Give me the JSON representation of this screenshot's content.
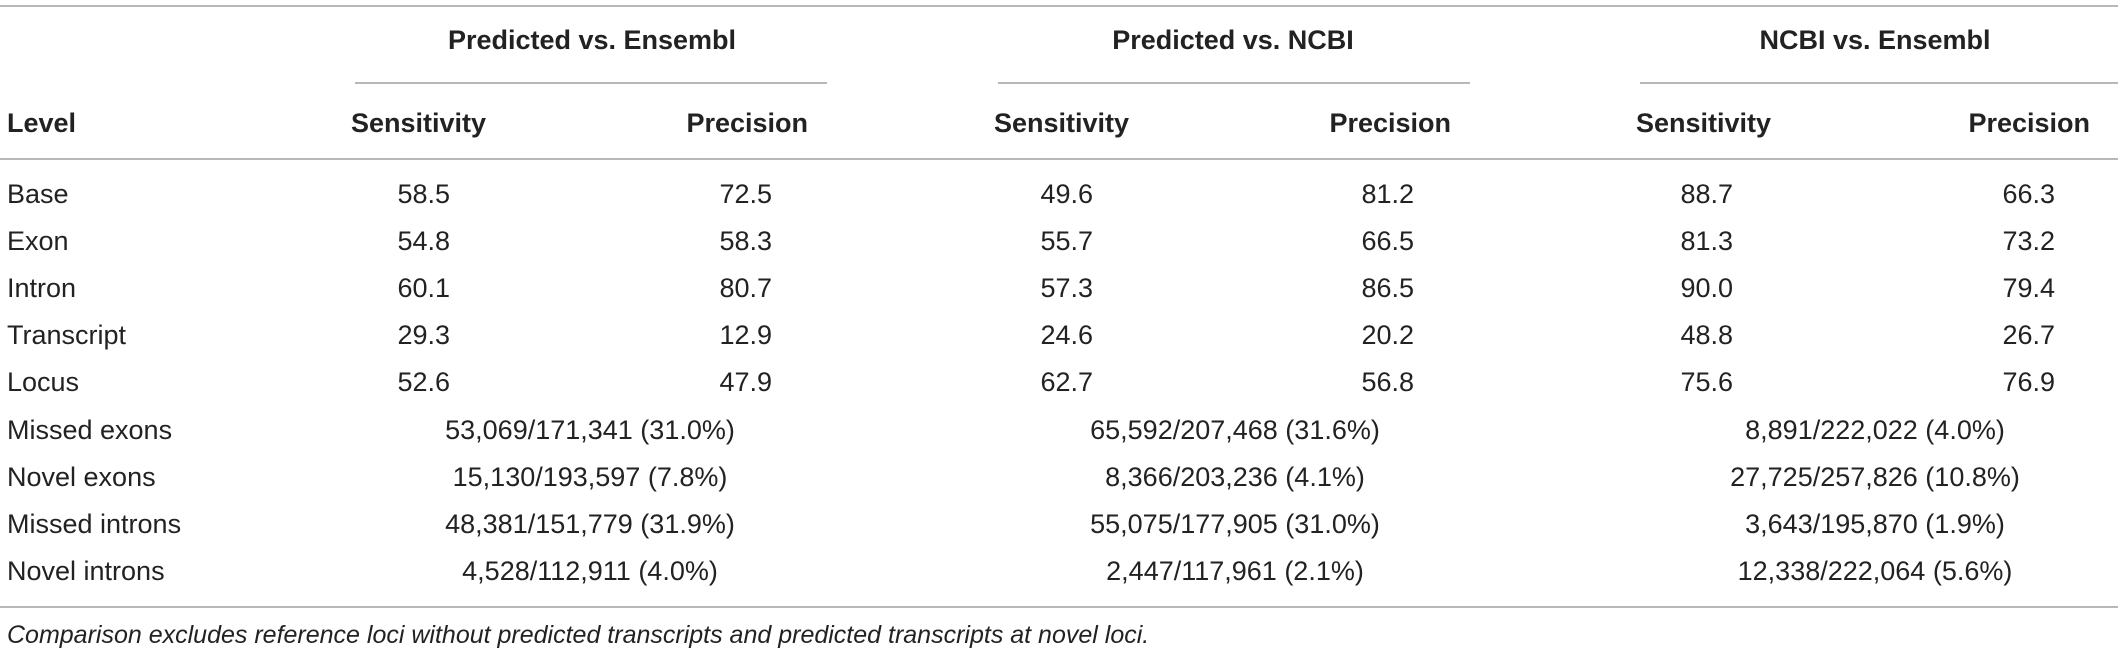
{
  "table": {
    "group_headers": [
      "Predicted vs. Ensembl",
      "Predicted vs. NCBI",
      "NCBI vs. Ensembl"
    ],
    "level_header": "Level",
    "sub_headers": [
      "Sensitivity",
      "Precision",
      "Sensitivity",
      "Precision",
      "Sensitivity",
      "Precision"
    ],
    "rows": [
      {
        "level": "Base",
        "values": [
          "58.5",
          "72.5",
          "49.6",
          "81.2",
          "88.7",
          "66.3"
        ]
      },
      {
        "level": "Exon",
        "values": [
          "54.8",
          "58.3",
          "55.7",
          "66.5",
          "81.3",
          "73.2"
        ]
      },
      {
        "level": "Intron",
        "values": [
          "60.1",
          "80.7",
          "57.3",
          "86.5",
          "90.0",
          "79.4"
        ]
      },
      {
        "level": "Transcript",
        "values": [
          "29.3",
          "12.9",
          "24.6",
          "20.2",
          "48.8",
          "26.7"
        ]
      },
      {
        "level": "Locus",
        "values": [
          "52.6",
          "47.9",
          "62.7",
          "56.8",
          "75.6",
          "76.9"
        ]
      }
    ],
    "span_rows": [
      {
        "level": "Missed exons",
        "values": [
          "53,069/171,341 (31.0%)",
          "65,592/207,468 (31.6%)",
          "8,891/222,022 (4.0%)"
        ]
      },
      {
        "level": "Novel exons",
        "values": [
          "15,130/193,597 (7.8%)",
          "8,366/203,236 (4.1%)",
          "27,725/257,826 (10.8%)"
        ]
      },
      {
        "level": "Missed introns",
        "values": [
          "48,381/151,779 (31.9%)",
          "55,075/177,905 (31.0%)",
          "3,643/195,870 (1.9%)"
        ]
      },
      {
        "level": "Novel introns",
        "values": [
          "4,528/112,911 (4.0%)",
          "2,447/117,961 (2.1%)",
          "12,338/222,064 (5.6%)"
        ]
      }
    ],
    "footnote": "Comparison excludes reference loci without predicted transcripts and predicted transcripts at novel loci."
  }
}
